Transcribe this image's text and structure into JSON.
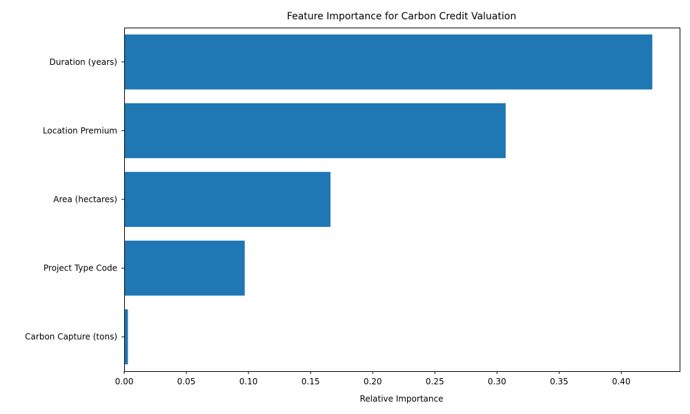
{
  "chart_data": {
    "type": "bar",
    "orientation": "horizontal",
    "title": "Feature Importance for Carbon Credit Valuation",
    "xlabel": "Relative Importance",
    "ylabel": "",
    "categories": [
      "Carbon Capture (tons)",
      "Project Type Code",
      "Area (hectares)",
      "Location Premium",
      "Duration (years)"
    ],
    "values": [
      0.003,
      0.097,
      0.166,
      0.307,
      0.425
    ],
    "xlim": [
      0,
      0.447
    ],
    "xticks": [
      0.0,
      0.05,
      0.1,
      0.15,
      0.2,
      0.25,
      0.3,
      0.35,
      0.4
    ],
    "xtick_labels": [
      "0.00",
      "0.05",
      "0.10",
      "0.15",
      "0.20",
      "0.25",
      "0.30",
      "0.35",
      "0.40"
    ],
    "bar_color": "#1f77b4",
    "grid": false,
    "legend": "none"
  }
}
